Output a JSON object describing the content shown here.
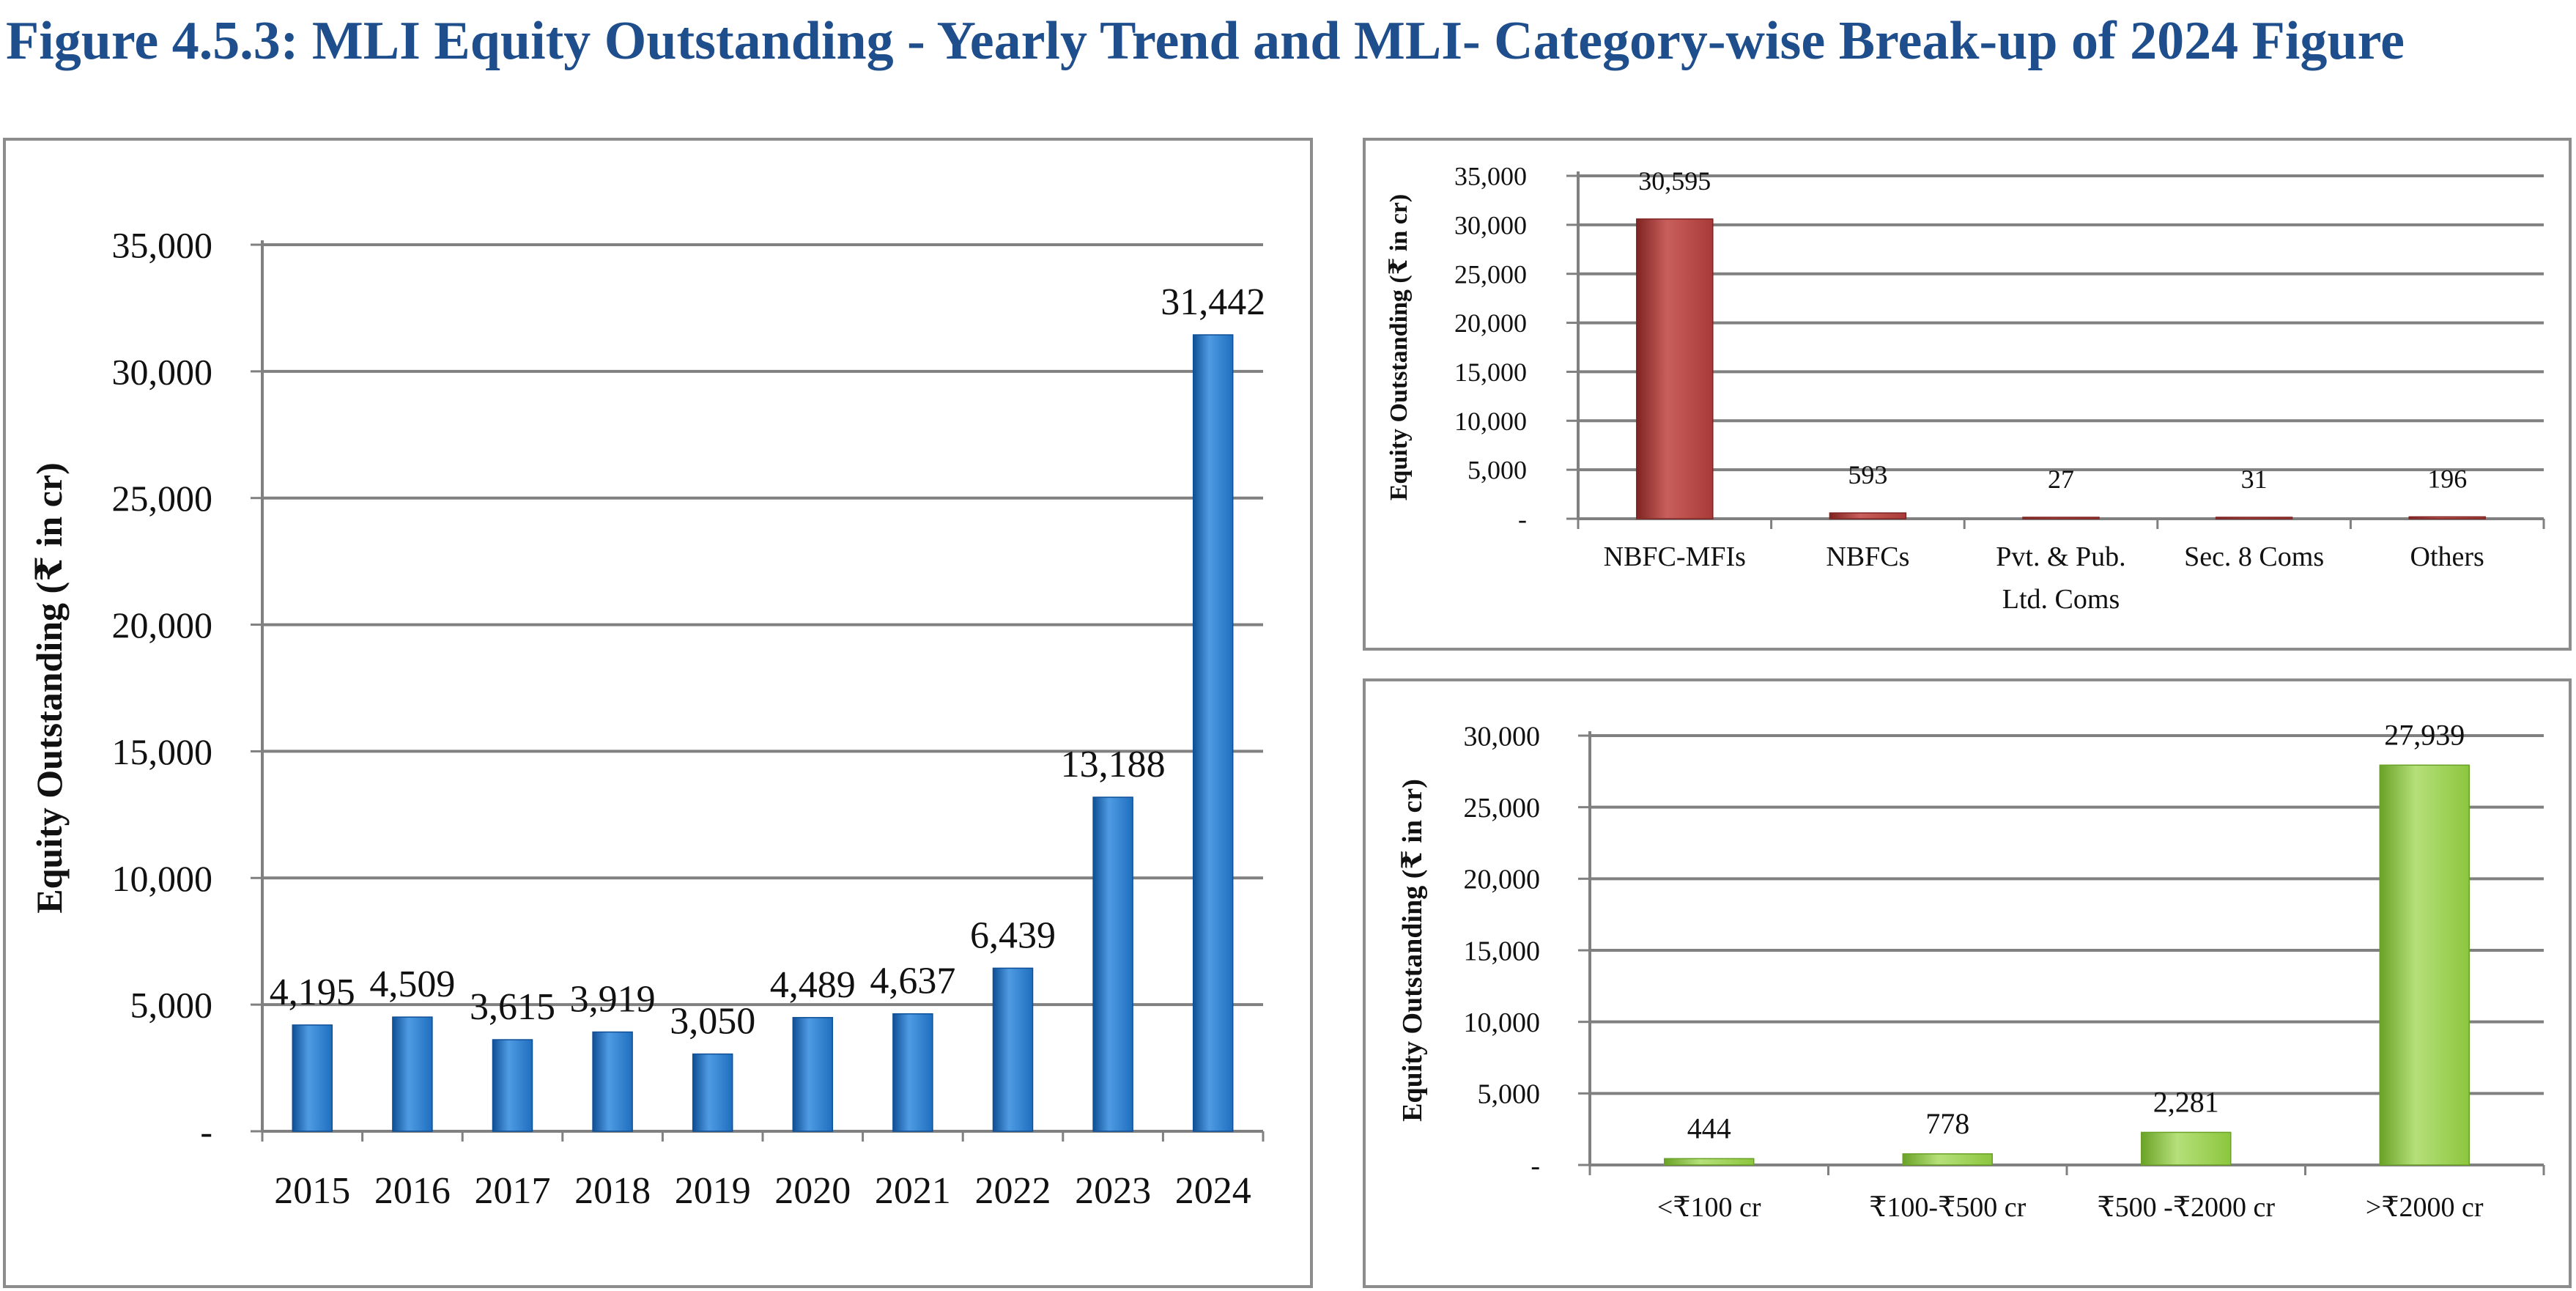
{
  "figure_title": "Figure 4.5.3: MLI Equity Outstanding - Yearly Trend and MLI- Category-wise Break-up of 2024 Figure",
  "colors": {
    "title": "#1f4e8c",
    "bar_blue": "#1f6fbf",
    "bar_red": "#a83a38",
    "bar_green": "#8cc63e",
    "grid": "#808080",
    "frame": "#8c8c8c"
  },
  "chart_data": [
    {
      "type": "bar",
      "categories": [
        "2015",
        "2016",
        "2017",
        "2018",
        "2019",
        "2020",
        "2021",
        "2022",
        "2023",
        "2024"
      ],
      "values": [
        4195,
        4509,
        3615,
        3919,
        3050,
        4489,
        4637,
        6439,
        13188,
        31442
      ],
      "data_labels": [
        "4,195",
        "4,509",
        "3,615",
        "3,919",
        "3,050",
        "4,489",
        "4,637",
        "6,439",
        "13,188",
        "31,442"
      ],
      "ylabel": "Equity Outstanding (₹ in cr)",
      "ylim": [
        0,
        35000
      ],
      "yticks": [
        0,
        5000,
        10000,
        15000,
        20000,
        25000,
        30000,
        35000
      ],
      "ytick_labels": [
        "-",
        "5,000",
        "10,000",
        "15,000",
        "20,000",
        "25,000",
        "30,000",
        "35,000"
      ],
      "grid": true,
      "legend": "none"
    },
    {
      "type": "bar",
      "categories": [
        "NBFC-MFIs",
        "NBFCs",
        "Pvt. & Pub.\nLtd. Coms",
        "Sec. 8 Coms",
        "Others"
      ],
      "values": [
        30595,
        593,
        27,
        31,
        196
      ],
      "data_labels": [
        "30,595",
        "593",
        "27",
        "31",
        "196"
      ],
      "ylabel": "Equity Outstanding (₹ in cr)",
      "ylim": [
        0,
        35000
      ],
      "yticks": [
        0,
        5000,
        10000,
        15000,
        20000,
        25000,
        30000,
        35000
      ],
      "ytick_labels": [
        "-",
        "5,000",
        "10,000",
        "15,000",
        "20,000",
        "25,000",
        "30,000",
        "35,000"
      ],
      "grid": true,
      "legend": "none"
    },
    {
      "type": "bar",
      "categories": [
        "<₹100 cr",
        "₹100-₹500 cr",
        "₹500 -₹2000 cr",
        ">₹2000 cr"
      ],
      "values": [
        444,
        778,
        2281,
        27939
      ],
      "data_labels": [
        "444",
        "778",
        "2,281",
        "27,939"
      ],
      "ylabel": "Equity Outstanding (₹ in cr)",
      "ylim": [
        0,
        30000
      ],
      "yticks": [
        0,
        5000,
        10000,
        15000,
        20000,
        25000,
        30000
      ],
      "ytick_labels": [
        "-",
        "5,000",
        "10,000",
        "15,000",
        "20,000",
        "25,000",
        "30,000"
      ],
      "grid": true,
      "legend": "none"
    }
  ]
}
